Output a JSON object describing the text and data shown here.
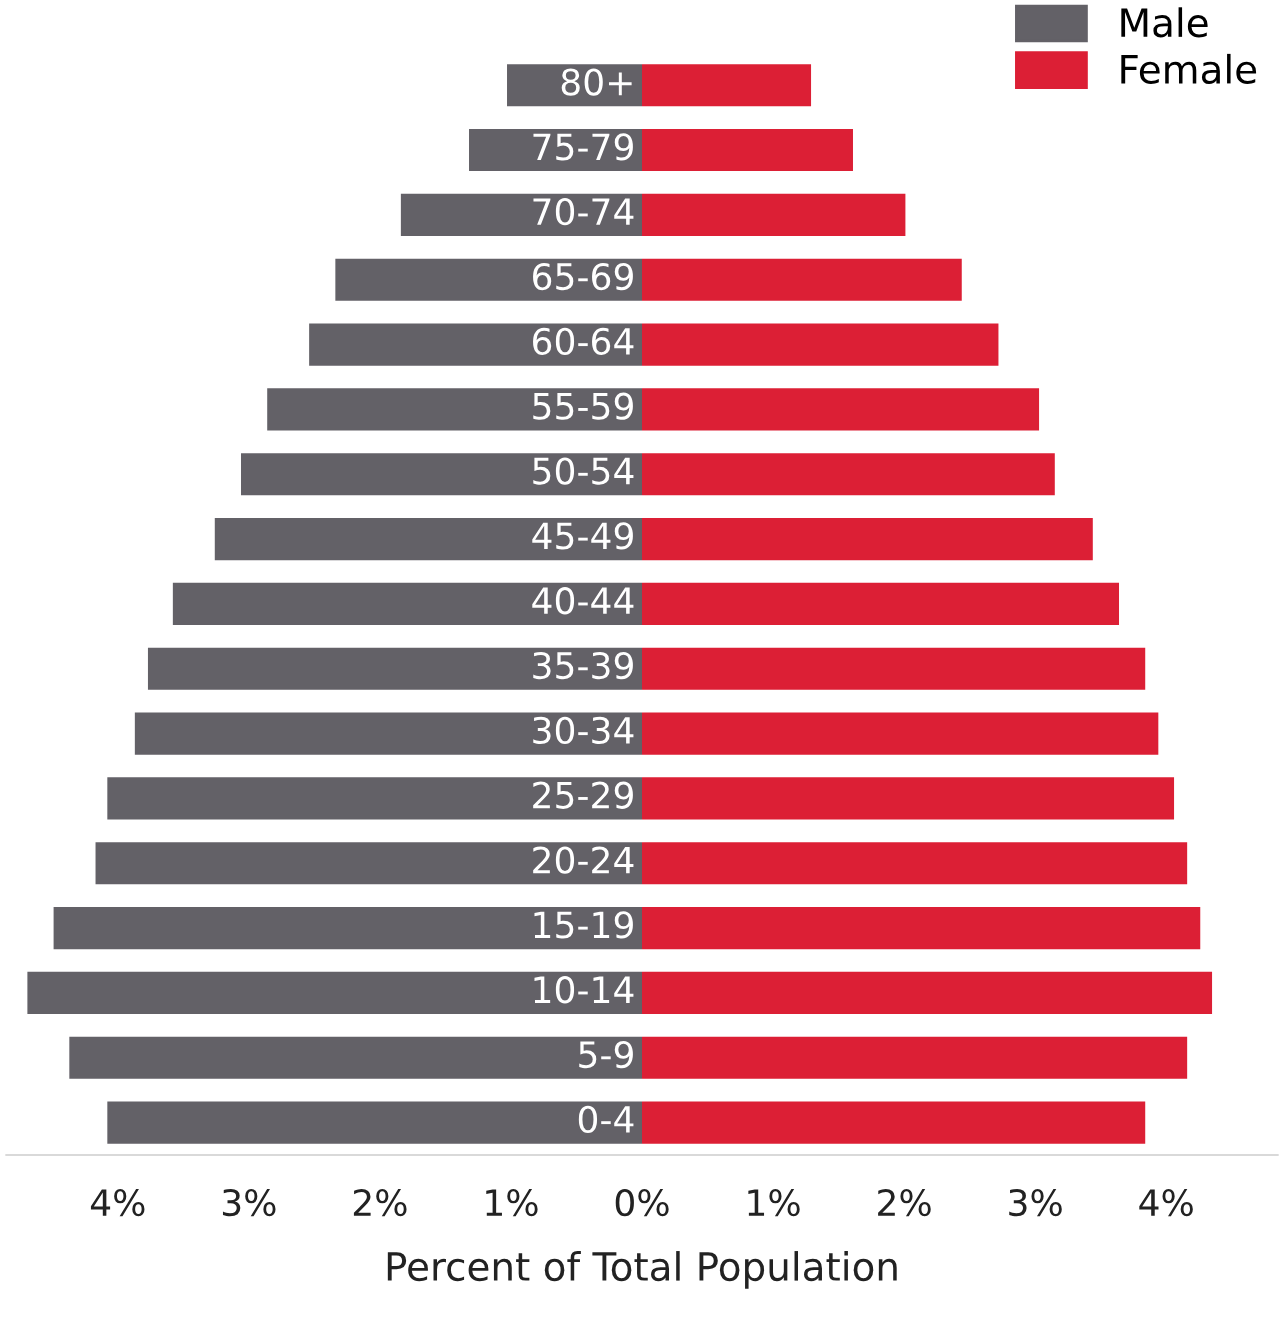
{
  "chart_data": {
    "type": "bar",
    "orientation": "horizontal",
    "stacked": true,
    "categories": [
      "80+",
      "75-79",
      "70-74",
      "65-69",
      "60-64",
      "55-59",
      "50-54",
      "45-49",
      "40-44",
      "35-39",
      "30-34",
      "25-29",
      "20-24",
      "15-19",
      "10-14",
      "5-9",
      "0-4"
    ],
    "series": [
      {
        "name": "Male",
        "color": "#636167",
        "values": [
          -1.03,
          -1.32,
          -1.84,
          -2.34,
          -2.54,
          -2.86,
          -3.06,
          -3.26,
          -3.58,
          -3.77,
          -3.87,
          -4.08,
          -4.17,
          -4.49,
          -4.69,
          -4.37,
          -4.08
        ]
      },
      {
        "name": "Female",
        "color": "#dc1f35",
        "values": [
          1.29,
          1.61,
          2.01,
          2.44,
          2.72,
          3.03,
          3.15,
          3.44,
          3.64,
          3.84,
          3.94,
          4.06,
          4.16,
          4.26,
          4.35,
          4.16,
          3.84
        ]
      }
    ],
    "xlabel": "Percent of Total Population",
    "xlim": [
      -4.85,
      4.85
    ],
    "xticks": [
      {
        "value": -4,
        "label": "4%"
      },
      {
        "value": -3,
        "label": "3%"
      },
      {
        "value": -2,
        "label": "2%"
      },
      {
        "value": -1,
        "label": "1%"
      },
      {
        "value": 0,
        "label": "0%"
      },
      {
        "value": 1,
        "label": "1%"
      },
      {
        "value": 2,
        "label": "2%"
      },
      {
        "value": 3,
        "label": "3%"
      },
      {
        "value": 4,
        "label": "4%"
      }
    ],
    "legend": "top right",
    "grid": false
  }
}
